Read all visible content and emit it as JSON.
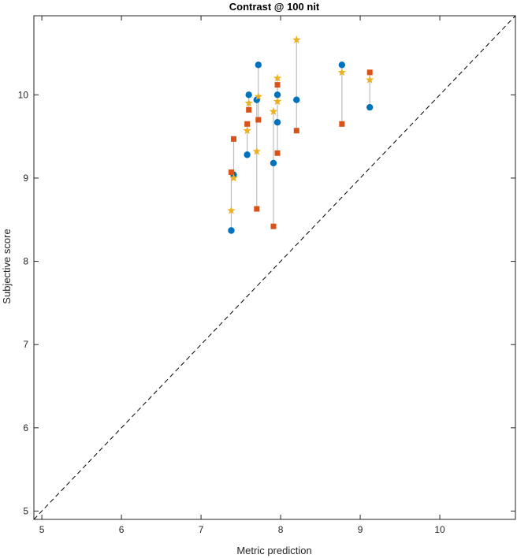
{
  "chart_data": {
    "type": "scatter",
    "title": "Contrast @ 100 nit",
    "xlabel": "Metric prediction",
    "ylabel": "Subjective score",
    "xlim": [
      4.9,
      10.95
    ],
    "ylim": [
      4.9,
      10.95
    ],
    "xticks": [
      5,
      6,
      7,
      8,
      9,
      10
    ],
    "yticks": [
      5,
      6,
      7,
      8,
      9,
      10
    ],
    "grid": false,
    "diagonal": {
      "from": [
        4.9,
        4.9
      ],
      "to": [
        10.95,
        10.95
      ],
      "style": "dashed"
    },
    "series": [
      {
        "color": "#0072BD",
        "marker": "circle",
        "points": [
          [
            7.38,
            8.37
          ],
          [
            7.41,
            9.04
          ],
          [
            7.58,
            9.28
          ],
          [
            7.6,
            10.0
          ],
          [
            7.7,
            9.94
          ],
          [
            7.72,
            10.36
          ],
          [
            7.91,
            9.18
          ],
          [
            7.96,
            10.0
          ],
          [
            7.96,
            9.67
          ],
          [
            8.2,
            9.94
          ],
          [
            8.77,
            10.36
          ],
          [
            9.12,
            9.85
          ]
        ]
      },
      {
        "color": "#D95319",
        "marker": "square",
        "points": [
          [
            7.38,
            9.07
          ],
          [
            7.41,
            9.47
          ],
          [
            7.58,
            9.65
          ],
          [
            7.6,
            9.82
          ],
          [
            7.7,
            8.63
          ],
          [
            7.72,
            9.7
          ],
          [
            7.91,
            8.42
          ],
          [
            7.96,
            10.12
          ],
          [
            7.96,
            9.3
          ],
          [
            8.2,
            9.57
          ],
          [
            8.77,
            9.65
          ],
          [
            9.12,
            10.27
          ]
        ]
      },
      {
        "color": "#EDB120",
        "marker": "star",
        "points": [
          [
            7.38,
            8.61
          ],
          [
            7.41,
            9.0
          ],
          [
            7.58,
            9.57
          ],
          [
            7.6,
            9.9
          ],
          [
            7.7,
            9.32
          ],
          [
            7.72,
            9.98
          ],
          [
            7.91,
            9.8
          ],
          [
            7.96,
            10.2
          ],
          [
            7.96,
            9.92
          ],
          [
            8.2,
            10.66
          ],
          [
            8.77,
            10.27
          ],
          [
            9.12,
            10.18
          ]
        ]
      }
    ],
    "connectors_color": "#bdbdbd"
  }
}
